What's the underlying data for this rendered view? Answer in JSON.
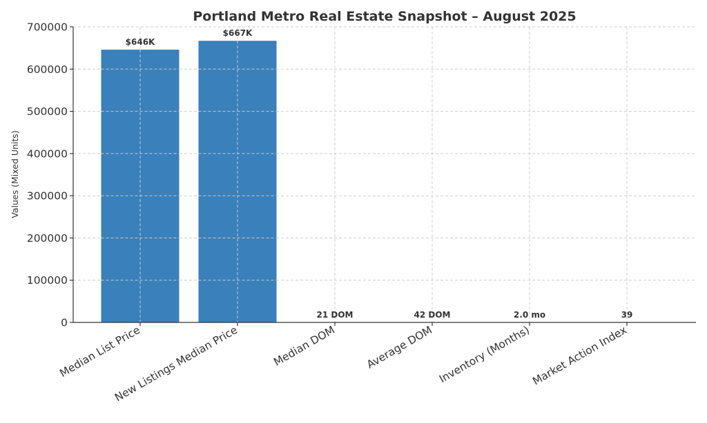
{
  "chart_data": {
    "type": "bar",
    "title": "Portland Metro Real Estate Snapshot – August 2025",
    "xlabel": "",
    "ylabel": "Values (Mixed Units)",
    "categories": [
      "Median List Price",
      "New Listings Median Price",
      "Median DOM",
      "Average DOM",
      "Inventory (Months)",
      "Market Action Index"
    ],
    "values": [
      646000,
      667000,
      21,
      42,
      2.0,
      39
    ],
    "data_labels": [
      "$646K",
      "$667K",
      "21 DOM",
      "42 DOM",
      "2.0 mo",
      "39"
    ],
    "ylim": [
      0,
      700000
    ],
    "yticks": [
      0,
      100000,
      200000,
      300000,
      400000,
      500000,
      600000,
      700000
    ],
    "grid": true,
    "bar_color": "#3a80bb"
  }
}
